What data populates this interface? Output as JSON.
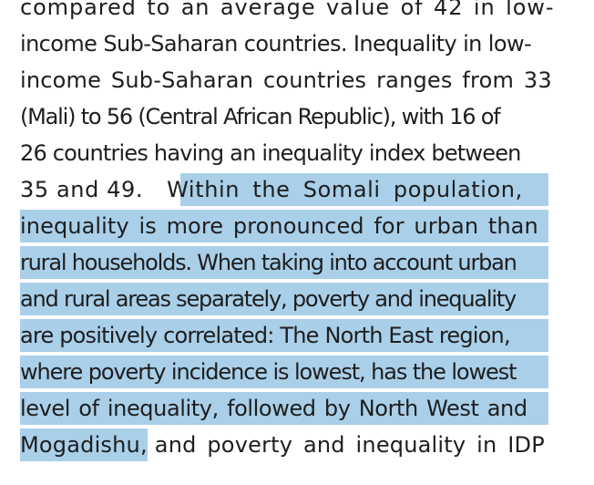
{
  "document": {
    "lines": [
      "compared to an average value of 42 in low-",
      "income Sub-Saharan countries. Inequality in low-",
      "income Sub-Saharan countries ranges from 33",
      "(Mali) to 56 (Central African Republic), with 16 of",
      "26 countries having an inequality index between",
      "35 and 49.",
      "Within the Somali population,",
      "inequality is more pronounced for urban than",
      "rural households. When taking into account urban",
      "and rural areas separately, poverty and inequality",
      "are positively correlated: The North East region,",
      "where poverty incidence is lowest, has the lowest",
      "level of inequality, followed by North West and",
      "Mogadishu,",
      "and poverty and inequality in IDP"
    ],
    "highlight_color": "#a9cfe9",
    "text_color": "#1e1e1e"
  }
}
